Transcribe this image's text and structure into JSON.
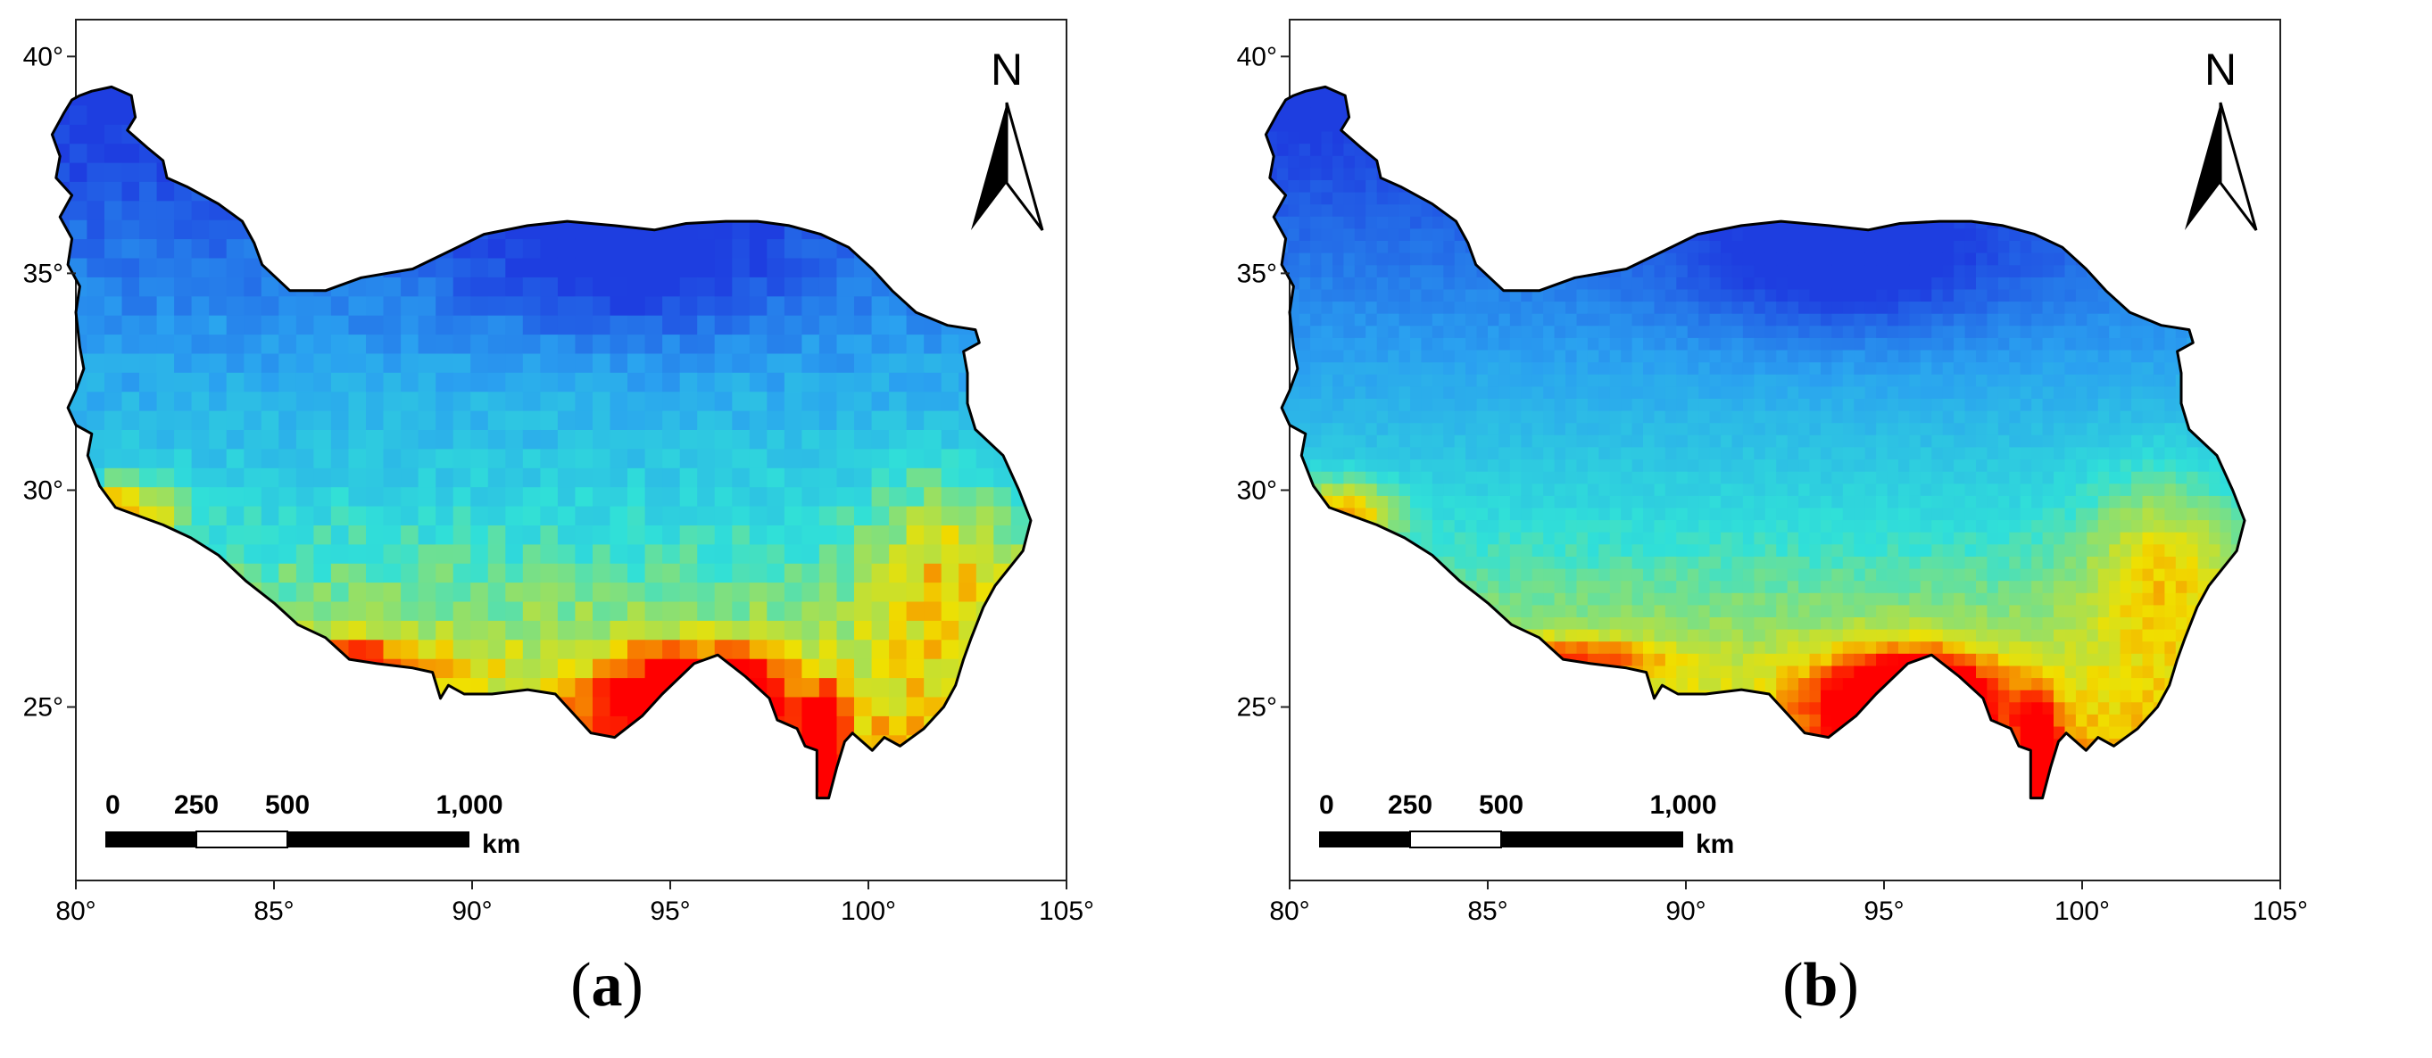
{
  "figure": {
    "panels": [
      {
        "id": "a",
        "caption_open": "(",
        "caption_letter": "a",
        "caption_close": ")",
        "north_label": "N",
        "x_ticks": [
          "80°",
          "85°",
          "90°",
          "95°",
          "100°",
          "105°"
        ],
        "y_ticks": [
          "40°",
          "35°",
          "30°",
          "25°"
        ],
        "scale_labels": [
          "0",
          "250",
          "500",
          "1,000"
        ],
        "scale_unit": "km",
        "resolution": "coarse"
      },
      {
        "id": "b",
        "caption_open": "(",
        "caption_letter": "b",
        "caption_close": ")",
        "north_label": "N",
        "x_ticks": [
          "80°",
          "85°",
          "90°",
          "95°",
          "100°",
          "105°"
        ],
        "y_ticks": [
          "40°",
          "35°",
          "30°",
          "25°"
        ],
        "scale_labels": [
          "0",
          "250",
          "500",
          "1,000"
        ],
        "scale_unit": "km",
        "resolution": "fine"
      }
    ],
    "colors": {
      "low": "#1e3ee0",
      "mid_low": "#2aa0f0",
      "mid": "#30e0d8",
      "mid_high": "#f0e000",
      "high": "#ff0000",
      "boundary": "#000000"
    }
  }
}
